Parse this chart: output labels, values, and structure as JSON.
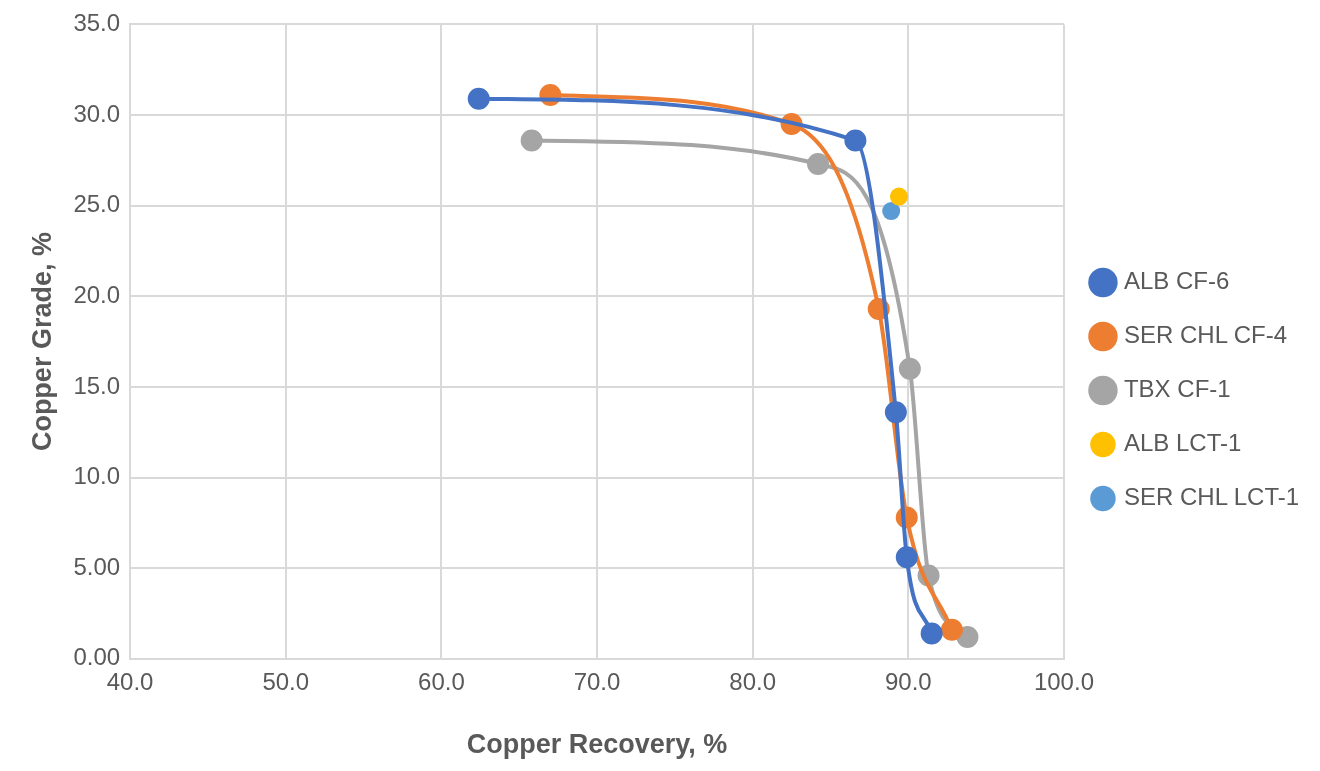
{
  "chart_data": {
    "type": "line",
    "xlabel": "Copper Recovery, %",
    "ylabel": "Copper Grade, %",
    "xlim": [
      40,
      100
    ],
    "xticks": [
      {
        "value": 40,
        "label": "40.0"
      },
      {
        "value": 50,
        "label": "50.0"
      },
      {
        "value": 60,
        "label": "60.0"
      },
      {
        "value": 70,
        "label": "70.0"
      },
      {
        "value": 80,
        "label": "80.0"
      },
      {
        "value": 90,
        "label": "90.0"
      },
      {
        "value": 100,
        "label": "100.0"
      }
    ],
    "ylim": [
      0,
      35
    ],
    "yticks": [
      {
        "value": 0,
        "label": "0.00"
      },
      {
        "value": 5,
        "label": "5.00"
      },
      {
        "value": 10,
        "label": "10.0"
      },
      {
        "value": 15,
        "label": "15.0"
      },
      {
        "value": 20,
        "label": "20.0"
      },
      {
        "value": 25,
        "label": "25.0"
      },
      {
        "value": 30,
        "label": "30.0"
      },
      {
        "value": 35,
        "label": "35.0"
      }
    ],
    "grid": true,
    "legend": "right",
    "marker": "circle",
    "series": [
      {
        "name": "ALB CF-6",
        "type": "line",
        "color": "#4472c4",
        "x": [
          62.4,
          86.6,
          89.2,
          89.9,
          91.5
        ],
        "values": [
          30.9,
          28.6,
          13.6,
          5.6,
          1.4
        ]
      },
      {
        "name": "SER CHL CF-4",
        "type": "line",
        "color": "#ed7d31",
        "x": [
          67.0,
          82.5,
          88.1,
          89.9,
          92.8
        ],
        "values": [
          31.1,
          29.5,
          19.3,
          7.8,
          1.6
        ]
      },
      {
        "name": "TBX CF-1",
        "type": "line",
        "color": "#a5a5a5",
        "x": [
          65.8,
          84.2,
          90.1,
          91.3,
          93.8
        ],
        "values": [
          28.6,
          27.3,
          16.0,
          4.6,
          1.2
        ]
      },
      {
        "name": "ALB LCT-1",
        "type": "scatter",
        "color": "#ffc000",
        "x": [
          89.4
        ],
        "values": [
          25.5
        ]
      },
      {
        "name": "SER CHL LCT-1",
        "type": "scatter",
        "color": "#5b9bd5",
        "x": [
          88.9
        ],
        "values": [
          24.7
        ]
      }
    ]
  }
}
